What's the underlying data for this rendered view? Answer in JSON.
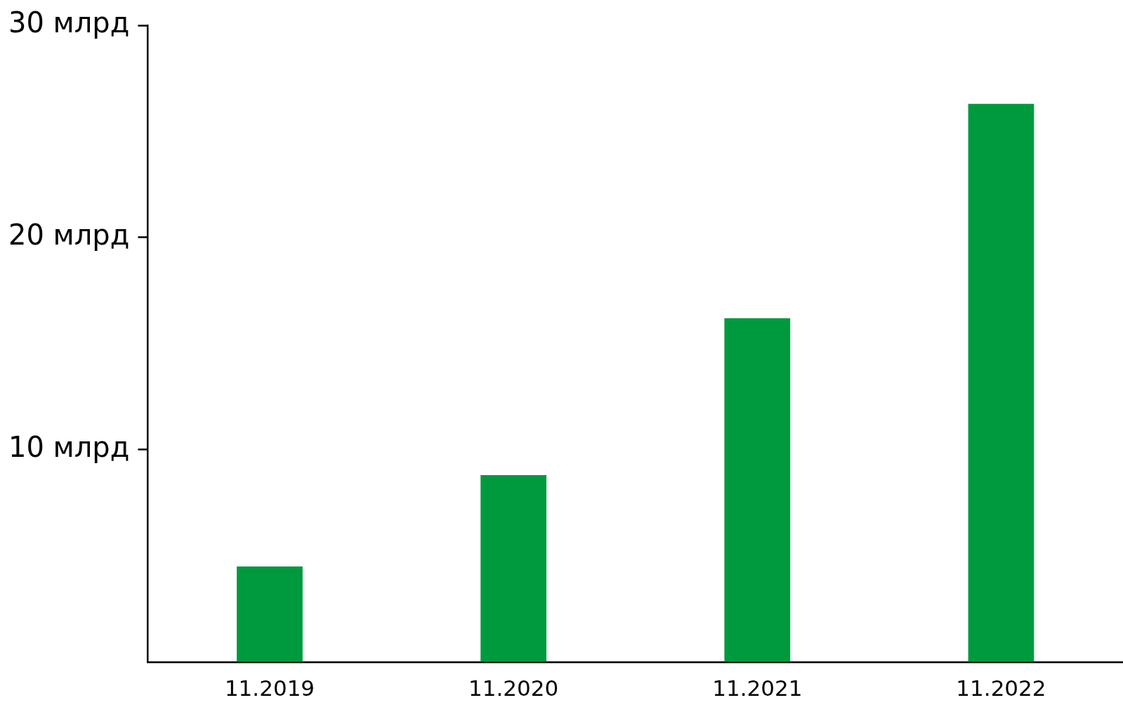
{
  "chart_data": {
    "type": "bar",
    "categories": [
      "11.2019",
      "11.2020",
      "11.2021",
      "11.2022"
    ],
    "values": [
      4.5,
      8.8,
      16.2,
      26.3
    ],
    "color": "#009a3e",
    "ylim": [
      0,
      30
    ],
    "yticks": [
      {
        "value": 10,
        "label": "10 млрд"
      },
      {
        "value": 20,
        "label": "20 млрд"
      },
      {
        "value": 30,
        "label": "30 млрд"
      }
    ],
    "grid": false,
    "legend": false
  }
}
